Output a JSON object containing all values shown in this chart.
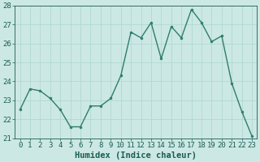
{
  "x": [
    0,
    1,
    2,
    3,
    4,
    5,
    6,
    7,
    8,
    9,
    10,
    11,
    12,
    13,
    14,
    15,
    16,
    17,
    18,
    19,
    20,
    21,
    22,
    23
  ],
  "y": [
    22.5,
    23.6,
    23.5,
    23.1,
    22.5,
    21.6,
    21.6,
    22.7,
    22.7,
    23.1,
    24.3,
    26.6,
    26.3,
    27.1,
    25.2,
    26.9,
    26.3,
    27.8,
    27.1,
    26.1,
    26.4,
    23.9,
    22.4,
    21.1
  ],
  "line_color": "#2e7d6e",
  "marker": "o",
  "markersize": 2.0,
  "linewidth": 1.0,
  "xlabel": "Humidex (Indice chaleur)",
  "ylim": [
    21,
    28
  ],
  "xlim": [
    -0.5,
    23.5
  ],
  "yticks": [
    21,
    22,
    23,
    24,
    25,
    26,
    27,
    28
  ],
  "xticks": [
    0,
    1,
    2,
    3,
    4,
    5,
    6,
    7,
    8,
    9,
    10,
    11,
    12,
    13,
    14,
    15,
    16,
    17,
    18,
    19,
    20,
    21,
    22,
    23
  ],
  "bg_color": "#cce8e4",
  "grid_color": "#b0d8d2",
  "tick_color": "#1a5c52",
  "label_color": "#1a5c52",
  "xlabel_fontsize": 7.5,
  "tick_fontsize": 6.5
}
